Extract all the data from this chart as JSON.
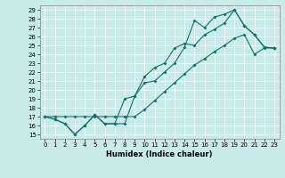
{
  "bg_color": "#c8eaea",
  "line_color": "#1a6b6b",
  "xlabel": "Humidex (Indice chaleur)",
  "xlim": [
    -0.5,
    23.5
  ],
  "ylim": [
    14.5,
    29.5
  ],
  "xticks": [
    0,
    1,
    2,
    3,
    4,
    5,
    6,
    7,
    8,
    9,
    10,
    11,
    12,
    13,
    14,
    15,
    16,
    17,
    18,
    19,
    20,
    21,
    22,
    23
  ],
  "yticks": [
    15,
    16,
    17,
    18,
    19,
    20,
    21,
    22,
    23,
    24,
    25,
    26,
    27,
    28,
    29
  ],
  "line1_x": [
    0,
    1,
    2,
    3,
    4,
    5,
    6,
    7,
    8,
    9,
    10,
    11,
    12,
    13,
    14,
    15,
    16,
    17,
    18,
    19,
    20,
    21,
    22,
    23
  ],
  "line1_y": [
    17.0,
    16.7,
    16.2,
    15.0,
    16.0,
    17.2,
    16.2,
    16.2,
    16.2,
    19.3,
    20.8,
    21.0,
    22.0,
    23.0,
    24.8,
    27.8,
    27.0,
    28.2,
    28.5,
    29.0,
    27.2,
    26.2,
    24.8,
    24.7
  ],
  "line2_x": [
    0,
    1,
    2,
    3,
    4,
    5,
    6,
    7,
    8,
    9,
    10,
    11,
    12,
    13,
    14,
    15,
    16,
    17,
    18,
    19,
    20,
    21,
    22,
    23
  ],
  "line2_y": [
    17.0,
    16.7,
    16.2,
    15.0,
    16.0,
    17.2,
    16.2,
    16.2,
    19.0,
    19.3,
    21.5,
    22.5,
    23.0,
    24.7,
    25.2,
    25.0,
    26.2,
    26.8,
    27.5,
    29.0,
    27.2,
    26.2,
    24.8,
    24.7
  ],
  "line3_x": [
    0,
    1,
    2,
    3,
    4,
    5,
    6,
    7,
    8,
    9,
    10,
    11,
    12,
    13,
    14,
    15,
    16,
    17,
    18,
    19,
    20,
    21,
    22,
    23
  ],
  "line3_y": [
    17.0,
    17.0,
    17.0,
    17.0,
    17.0,
    17.0,
    17.0,
    17.0,
    17.0,
    17.0,
    17.8,
    18.8,
    19.8,
    20.8,
    21.8,
    22.8,
    23.5,
    24.3,
    25.0,
    25.8,
    26.2,
    24.0,
    24.7,
    24.7
  ],
  "grid_color": "#ffffff",
  "marker": "D",
  "markersize": 2.0,
  "linewidth": 0.8,
  "tick_fontsize": 5.0,
  "xlabel_fontsize": 6.0
}
